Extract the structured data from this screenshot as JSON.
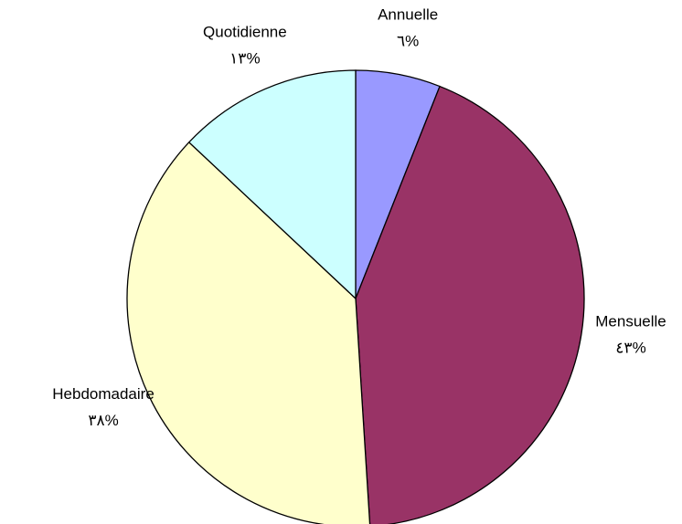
{
  "chart_data": {
    "type": "pie",
    "categories": [
      "Annuelle",
      "Mensuelle",
      "Hebdomadaire",
      "Quotidienne"
    ],
    "values": [
      6,
      43,
      38,
      13
    ],
    "value_labels": [
      "٦%",
      "٤٣%",
      "٣٨%",
      "١٣%"
    ],
    "colors": [
      "#9999ff",
      "#993366",
      "#ffffcc",
      "#ccffff"
    ]
  }
}
